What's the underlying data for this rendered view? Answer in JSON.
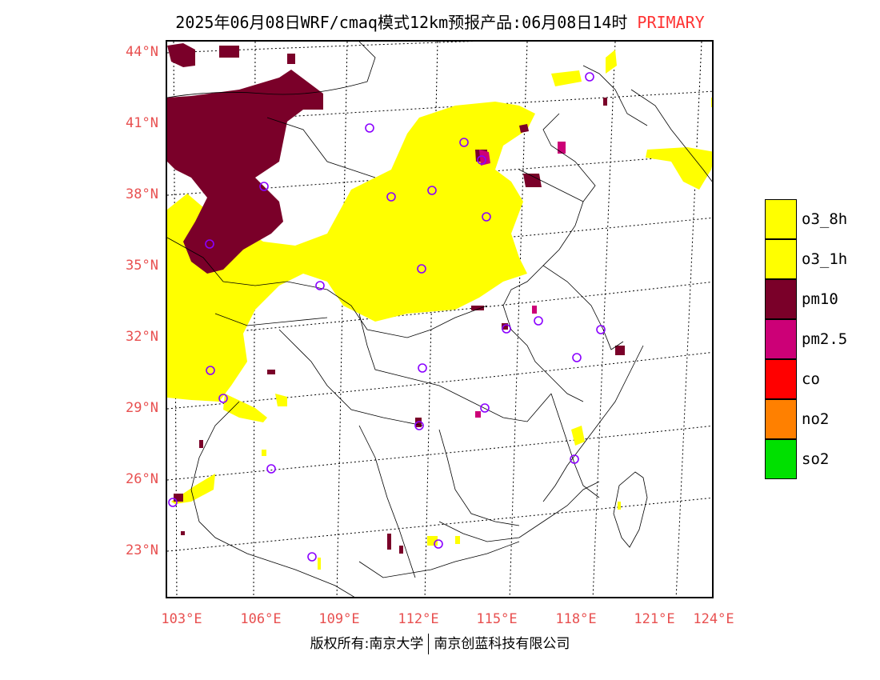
{
  "header": {
    "title": "2025年06月08日WRF/cmaq模式12km预报产品:06月08日14时",
    "tag": "PRIMARY"
  },
  "axes": {
    "lat_labels": [
      "44°N",
      "41°N",
      "38°N",
      "35°N",
      "32°N",
      "29°N",
      "26°N",
      "23°N"
    ],
    "lon_labels": [
      "103°E",
      "106°E",
      "109°E",
      "112°E",
      "115°E",
      "118°E",
      "121°E",
      "124°E"
    ]
  },
  "legend": {
    "items": [
      {
        "label": "o3_8h",
        "color": "#ffff00"
      },
      {
        "label": "o3_1h",
        "color": "#ffff00"
      },
      {
        "label": "pm10",
        "color": "#7a0029"
      },
      {
        "label": "pm2.5",
        "color": "#cc0077"
      },
      {
        "label": "co",
        "color": "#ff0000"
      },
      {
        "label": "no2",
        "color": "#ff8000"
      },
      {
        "label": "so2",
        "color": "#00e000"
      }
    ]
  },
  "footer": {
    "left": "版权所有:南京大学",
    "right": "南京创蓝科技有限公司"
  },
  "colors": {
    "o3": "#ffff00",
    "pm10": "#7a0029",
    "pm25": "#cc0077",
    "station": "#8a00ff",
    "axis_label": "#e85050"
  }
}
